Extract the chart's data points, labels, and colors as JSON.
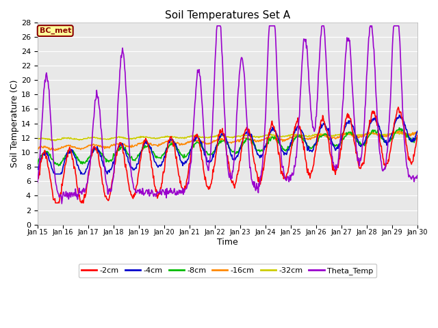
{
  "title": "Soil Temperatures Set A",
  "xlabel": "Time",
  "ylabel": "Soil Temperature (C)",
  "ylim": [
    0,
    28
  ],
  "yticks": [
    0,
    2,
    4,
    6,
    8,
    10,
    12,
    14,
    16,
    18,
    20,
    22,
    24,
    26,
    28
  ],
  "xtick_labels": [
    "Jan 15",
    "Jan 16",
    "Jan 17",
    "Jan 18",
    "Jan 19",
    "Jan 20",
    "Jan 21",
    "Jan 22",
    "Jan 23",
    "Jan 24",
    "Jan 25",
    "Jan 26",
    "Jan 27",
    "Jan 28",
    "Jan 29",
    "Jan 30"
  ],
  "annotation_text": "BC_met",
  "annotation_color": "#8B0000",
  "annotation_bg": "#FFFF99",
  "bg_color": "#E8E8E8",
  "series_colors": {
    "2cm": "#FF0000",
    "4cm": "#0000CC",
    "8cm": "#00BB00",
    "16cm": "#FF8800",
    "32cm": "#CCCC00",
    "theta": "#9900CC"
  },
  "legend_labels": [
    "-2cm",
    "-4cm",
    "-8cm",
    "-16cm",
    "-32cm",
    "Theta_Temp"
  ],
  "line_width": 1.2,
  "figsize": [
    6.4,
    4.8
  ],
  "dpi": 100
}
